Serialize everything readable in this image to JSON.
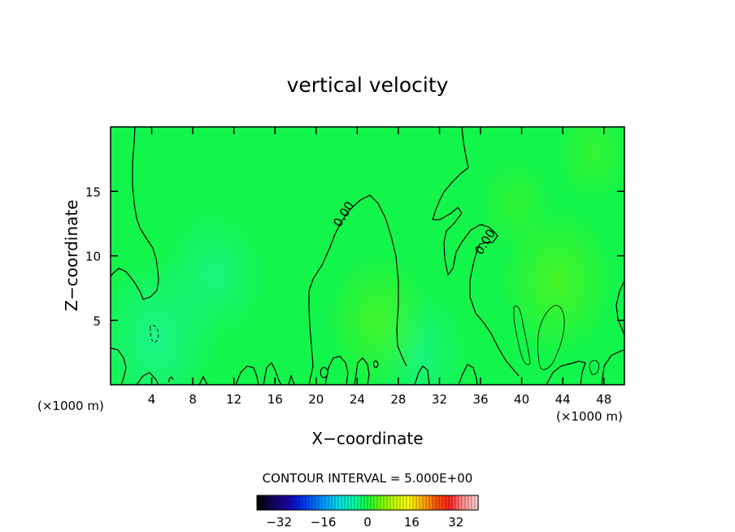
{
  "chart_data": {
    "type": "heatmap",
    "title": "vertical velocity",
    "xlabel": "X−coordinate",
    "ylabel": "Z−coordinate",
    "x_unit_left": "(×1000 m)",
    "x_unit_right": "(×1000 m)",
    "xlim": [
      0,
      50
    ],
    "ylim": [
      0,
      20
    ],
    "xticks": [
      4,
      8,
      12,
      16,
      20,
      24,
      28,
      32,
      36,
      40,
      44,
      48
    ],
    "xtick_labels": [
      "4",
      "8",
      "12",
      "16",
      "20",
      "24",
      "28",
      "32",
      "36",
      "40",
      "44",
      "48"
    ],
    "yticks": [
      5,
      10,
      15
    ],
    "ytick_labels": [
      "5",
      "10",
      "15"
    ],
    "contour_interval_text": "CONTOUR INTERVAL = 5.000E+00",
    "contour_labels": [
      {
        "text": "0.00",
        "x": 21.8,
        "y": 13.1
      },
      {
        "text": "0.00",
        "x": 37.5,
        "y": 10.8
      }
    ],
    "colorbar": {
      "range": [
        -40,
        40
      ],
      "ticks": [
        -32,
        -16,
        0,
        16,
        32
      ],
      "tick_labels": [
        "−32",
        "−16",
        "0",
        "16",
        "32"
      ],
      "colors": [
        "#000000",
        "#14005a",
        "#1e00a0",
        "#0024e6",
        "#0064ff",
        "#00aaff",
        "#00e6e6",
        "#00ffaa",
        "#14ff3c",
        "#78ff00",
        "#c8ff00",
        "#ffff00",
        "#ffb400",
        "#ff5a00",
        "#ff1e1e",
        "#ff8c8c",
        "#ffcdcd"
      ]
    },
    "field": {
      "background_value": 0.0,
      "colors": {
        "zero": "#12f54a",
        "negative": "#1ff5a0",
        "positive": "#5af51a"
      },
      "anomalies": [
        {
          "x": 10.0,
          "y": 8.5,
          "value": -1.3
        },
        {
          "x": 4.5,
          "y": 3.5,
          "value": -1.8
        },
        {
          "x": 30.0,
          "y": 2.5,
          "value": -1.2
        },
        {
          "x": 43.5,
          "y": 8.0,
          "value": 1.5
        },
        {
          "x": 26.0,
          "y": 5.0,
          "value": 1.2
        },
        {
          "x": 47.0,
          "y": 18.0,
          "value": 0.6
        },
        {
          "x": 39.5,
          "y": 14.0,
          "value": 0.4
        }
      ]
    }
  }
}
